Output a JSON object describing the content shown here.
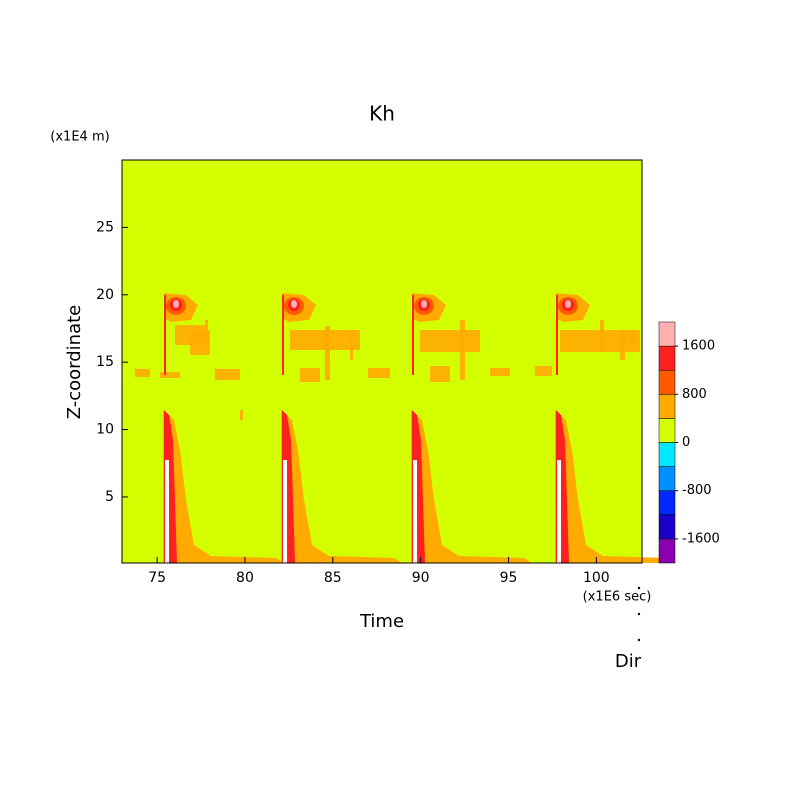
{
  "chart_data": {
    "type": "contour",
    "title": "Kh",
    "x_label": "Time",
    "y_label": "Z-coordinate",
    "x_unit": "(x1E6 sec)",
    "y_unit": "(x1E4 m)",
    "note": "Dir",
    "xlim": [
      73,
      102.6
    ],
    "ylim": [
      0.1,
      30
    ],
    "xticks": [
      75,
      80,
      85,
      90,
      95,
      100
    ],
    "yticks": [
      5,
      10,
      15,
      20,
      25
    ],
    "colorbar": {
      "lim": [
        -2000,
        2000
      ],
      "ticks": [
        -1600,
        -800,
        0,
        800,
        1600
      ],
      "colors": [
        "#8a00b0",
        "#1a00c8",
        "#0028ff",
        "#0090ff",
        "#00e8ff",
        "#d4ff00",
        "#ffaa00",
        "#ff5a00",
        "#ff2020",
        "#ffb0b0"
      ]
    }
  }
}
